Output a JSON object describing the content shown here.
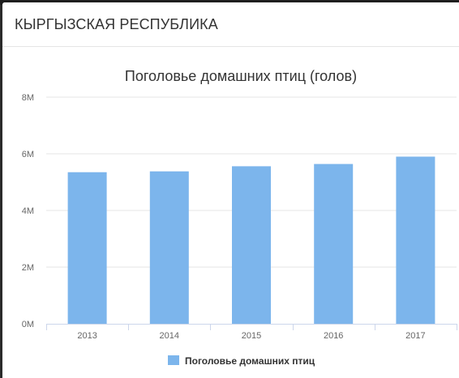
{
  "header": {
    "title": "КЫРГЫЗСКАЯ РЕСПУБЛИКА"
  },
  "colors": {
    "bar": "#7cb5ec",
    "grid": "#e6e6e6",
    "axis": "#ccd6eb",
    "text": "#333333",
    "tick_text": "#666666"
  },
  "chart_data": {
    "type": "bar",
    "title": "Поголовье домашних птиц (голов)",
    "categories": [
      "2013",
      "2014",
      "2015",
      "2016",
      "2017"
    ],
    "series": [
      {
        "name": "Поголовье домашних птиц",
        "values": [
          5350000,
          5380000,
          5560000,
          5640000,
          5900000
        ]
      }
    ],
    "ylim": [
      0,
      8000000
    ],
    "yticks": [
      0,
      2000000,
      4000000,
      6000000,
      8000000
    ],
    "ytick_labels": [
      "0M",
      "2M",
      "4M",
      "6M",
      "8M"
    ],
    "grid": true,
    "legend": "bottom-center"
  }
}
